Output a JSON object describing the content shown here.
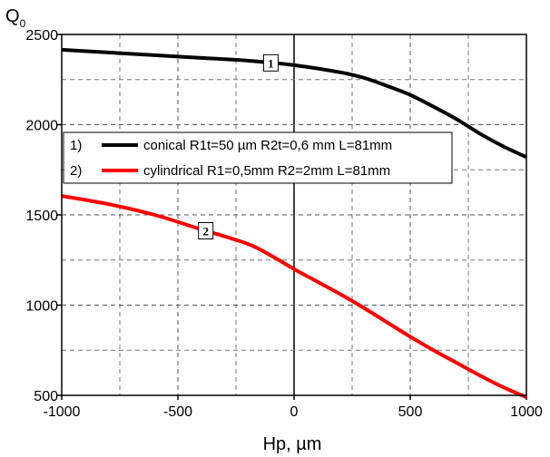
{
  "chart_data": {
    "type": "line",
    "xlabel": "Hp, µm",
    "ylabel_main": "Q",
    "ylabel_sub": "0",
    "xlim": [
      -1000,
      1000
    ],
    "ylim": [
      500,
      2500
    ],
    "x_ticks": [
      -1000,
      -500,
      0,
      500,
      1000
    ],
    "x_tick_labels": [
      "-1000",
      "-500",
      "0",
      "500",
      "1000"
    ],
    "y_ticks": [
      500,
      1000,
      1500,
      2000,
      2500
    ],
    "y_tick_labels": [
      "500",
      "1000",
      "1500",
      "2000",
      "2500"
    ],
    "grid": "dashed",
    "legend_position": "top-left",
    "series": [
      {
        "name": "conical R1t=50 µm R2t=0,6 mm L=81mm",
        "legend_index": "1)",
        "marker": "1",
        "marker_x": -100,
        "color": "#000000",
        "x": [
          -1000,
          -800,
          -600,
          -400,
          -200,
          0,
          200,
          300,
          400,
          500,
          600,
          700,
          800,
          900,
          1000
        ],
        "y": [
          2415,
          2400,
          2385,
          2370,
          2355,
          2330,
          2290,
          2260,
          2215,
          2165,
          2100,
          2030,
          1950,
          1880,
          1820
        ]
      },
      {
        "name": "cylindrical R1=0,5mm R2=2mm L=81mm",
        "legend_index": "2)",
        "marker": "2",
        "marker_x": -380,
        "color": "#ff0000",
        "x": [
          -1000,
          -800,
          -600,
          -400,
          -200,
          -100,
          0,
          100,
          200,
          300,
          400,
          500,
          600,
          700,
          800,
          900,
          1000
        ],
        "y": [
          1605,
          1560,
          1500,
          1420,
          1340,
          1275,
          1200,
          1130,
          1060,
          985,
          905,
          825,
          750,
          680,
          610,
          545,
          490
        ]
      }
    ]
  }
}
